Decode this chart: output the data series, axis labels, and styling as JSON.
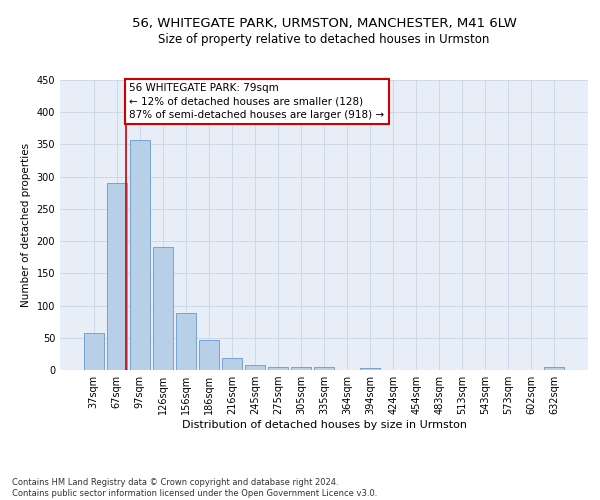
{
  "title1": "56, WHITEGATE PARK, URMSTON, MANCHESTER, M41 6LW",
  "title2": "Size of property relative to detached houses in Urmston",
  "xlabel": "Distribution of detached houses by size in Urmston",
  "ylabel": "Number of detached properties",
  "categories": [
    "37sqm",
    "67sqm",
    "97sqm",
    "126sqm",
    "156sqm",
    "186sqm",
    "216sqm",
    "245sqm",
    "275sqm",
    "305sqm",
    "335sqm",
    "364sqm",
    "394sqm",
    "424sqm",
    "454sqm",
    "483sqm",
    "513sqm",
    "543sqm",
    "573sqm",
    "602sqm",
    "632sqm"
  ],
  "values": [
    58,
    290,
    357,
    191,
    89,
    46,
    19,
    8,
    5,
    4,
    4,
    0,
    3,
    0,
    0,
    0,
    0,
    0,
    0,
    0,
    4
  ],
  "bar_color": "#b8cfe8",
  "bar_edge_color": "#6699cc",
  "annotation_box_text": "56 WHITEGATE PARK: 79sqm\n← 12% of detached houses are smaller (128)\n87% of semi-detached houses are larger (918) →",
  "annotation_box_color": "#ffffff",
  "annotation_box_edge_color": "#cc0000",
  "vline_color": "#cc0000",
  "vline_x": 1.4,
  "grid_color": "#c8d4e8",
  "background_color": "#e8eef8",
  "footer_text": "Contains HM Land Registry data © Crown copyright and database right 2024.\nContains public sector information licensed under the Open Government Licence v3.0.",
  "ylim": [
    0,
    450
  ],
  "yticks": [
    0,
    50,
    100,
    150,
    200,
    250,
    300,
    350,
    400,
    450
  ],
  "title1_fontsize": 9.5,
  "title2_fontsize": 8.5,
  "xlabel_fontsize": 8,
  "ylabel_fontsize": 7.5,
  "tick_fontsize": 7,
  "annot_fontsize": 7.5
}
